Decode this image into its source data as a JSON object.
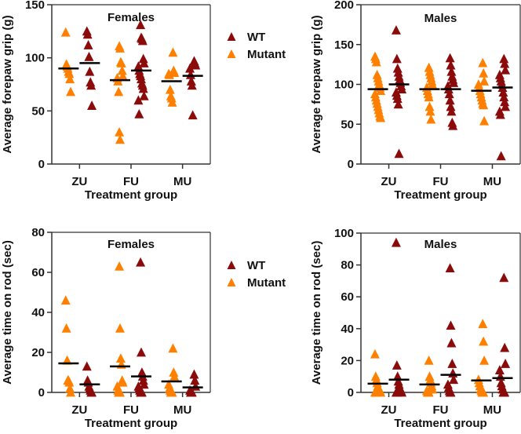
{
  "colors": {
    "wt": "#8b0a0a",
    "mutant": "#ff8000",
    "mean": "#000000",
    "axis": "#333333"
  },
  "legend": {
    "placement": "right",
    "entries": [
      {
        "label": "WT",
        "series": "WT"
      },
      {
        "label": "Mutant",
        "series": "Mutant"
      }
    ]
  },
  "chart_data": [
    {
      "type": "scatter",
      "title": "Females",
      "xlabel": "Treatment group",
      "ylabel": "Average forepaw grip (g)",
      "ylim": [
        0,
        150
      ],
      "yticks": [
        0,
        50,
        100,
        150
      ],
      "categories": [
        "ZU",
        "FU",
        "MU"
      ],
      "legend": "right",
      "series": [
        {
          "name": "Mutant",
          "groups": [
            {
              "category": "ZU",
              "values": [
                124,
                94,
                92,
                90,
                87,
                85,
                80,
                68
              ],
              "mean": 90
            },
            {
              "category": "FU",
              "values": [
                111,
                109,
                96,
                95,
                88,
                83,
                81,
                78,
                68,
                30,
                23
              ],
              "mean": 79
            },
            {
              "category": "MU",
              "values": [
                105,
                88,
                86,
                85,
                84,
                70,
                64,
                62,
                58
              ],
              "mean": 78
            }
          ]
        },
        {
          "name": "WT",
          "groups": [
            {
              "category": "ZU",
              "values": [
                125,
                122,
                112,
                101,
                87,
                77,
                74,
                55
              ],
              "mean": 95
            },
            {
              "category": "FU",
              "values": [
                131,
                119,
                118,
                116,
                99,
                95,
                92,
                88,
                85,
                83,
                80,
                76,
                74,
                71,
                64,
                60,
                47
              ],
              "mean": 88
            },
            {
              "category": "MU",
              "values": [
                97,
                95,
                93,
                90,
                84,
                78,
                74,
                46
              ],
              "mean": 83
            }
          ]
        }
      ]
    },
    {
      "type": "scatter",
      "title": "Males",
      "xlabel": "Treatment group",
      "ylabel": "Average forepaw grip (g)",
      "ylim": [
        0,
        200
      ],
      "yticks": [
        0,
        50,
        100,
        150,
        200
      ],
      "categories": [
        "ZU",
        "FU",
        "MU"
      ],
      "legend": "none",
      "series": [
        {
          "name": "Mutant",
          "groups": [
            {
              "category": "ZU",
              "values": [
                135,
                132,
                128,
                112,
                108,
                104,
                100,
                96,
                92,
                88,
                84,
                80,
                76,
                72,
                68,
                64,
                60,
                58
              ],
              "mean": 94
            },
            {
              "category": "FU",
              "values": [
                121,
                116,
                112,
                108,
                104,
                100,
                96,
                92,
                88,
                84,
                72,
                66,
                56
              ],
              "mean": 94
            },
            {
              "category": "MU",
              "values": [
                127,
                114,
                104,
                100,
                96,
                92,
                88,
                84,
                80,
                76,
                74,
                54
              ],
              "mean": 92
            }
          ]
        },
        {
          "name": "WT",
          "groups": [
            {
              "category": "ZU",
              "values": [
                168,
                132,
                120,
                115,
                110,
                106,
                102,
                98,
                94,
                90,
                86,
                82,
                75,
                13
              ],
              "mean": 100
            },
            {
              "category": "FU",
              "values": [
                133,
                124,
                116,
                110,
                106,
                102,
                98,
                94,
                88,
                80,
                72,
                66,
                52,
                48
              ],
              "mean": 94
            },
            {
              "category": "MU",
              "values": [
                132,
                126,
                118,
                112,
                108,
                104,
                100,
                96,
                90,
                84,
                78,
                72,
                66,
                62,
                10
              ],
              "mean": 96
            }
          ]
        }
      ]
    },
    {
      "type": "scatter",
      "title": "Females",
      "xlabel": "Treatment group",
      "ylabel": "Average time on rod (sec)",
      "ylim": [
        0,
        80
      ],
      "yticks": [
        0,
        20,
        40,
        60,
        80
      ],
      "categories": [
        "ZU",
        "FU",
        "MU"
      ],
      "legend": "right",
      "series": [
        {
          "name": "Mutant",
          "groups": [
            {
              "category": "ZU",
              "values": [
                46,
                32,
                16,
                6,
                6,
                5,
                2,
                0
              ],
              "mean": 14.5
            },
            {
              "category": "FU",
              "values": [
                63,
                32,
                17,
                14,
                6,
                5,
                3,
                1,
                0,
                0,
                0
              ],
              "mean": 13
            },
            {
              "category": "MU",
              "values": [
                22,
                10,
                8,
                4,
                2,
                1,
                0,
                0,
                0
              ],
              "mean": 5.5
            }
          ]
        },
        {
          "name": "WT",
          "groups": [
            {
              "category": "ZU",
              "values": [
                13,
                6,
                5,
                3,
                2,
                1,
                0,
                0
              ],
              "mean": 4
            },
            {
              "category": "FU",
              "values": [
                65,
                20,
                10,
                8,
                6,
                4,
                3,
                2,
                1,
                0,
                0,
                0
              ],
              "mean": 8
            },
            {
              "category": "MU",
              "values": [
                9,
                6,
                3,
                1,
                0,
                0,
                0
              ],
              "mean": 2.5
            }
          ]
        }
      ]
    },
    {
      "type": "scatter",
      "title": "Males",
      "xlabel": "Treatment group",
      "ylabel": "Average time on rod (sec)",
      "ylim": [
        0,
        100
      ],
      "yticks": [
        0,
        20,
        40,
        60,
        80,
        100
      ],
      "categories": [
        "ZU",
        "FU",
        "MU"
      ],
      "legend": "none",
      "series": [
        {
          "name": "Mutant",
          "groups": [
            {
              "category": "ZU",
              "values": [
                24,
                10,
                8,
                6,
                4,
                3,
                2,
                1,
                0,
                0,
                0,
                0
              ],
              "mean": 5.5
            },
            {
              "category": "FU",
              "values": [
                20,
                10,
                8,
                6,
                4,
                2,
                1,
                0,
                0,
                0
              ],
              "mean": 5
            },
            {
              "category": "MU",
              "values": [
                43,
                32,
                20,
                8,
                6,
                4,
                2,
                1,
                0,
                0,
                0
              ],
              "mean": 7.5
            }
          ]
        },
        {
          "name": "WT",
          "groups": [
            {
              "category": "ZU",
              "values": [
                94,
                17,
                10,
                7,
                5,
                3,
                2,
                1,
                0,
                0,
                0
              ],
              "mean": 8
            },
            {
              "category": "FU",
              "values": [
                78,
                42,
                31,
                18,
                12,
                8,
                5,
                3,
                1,
                0,
                0
              ],
              "mean": 11
            },
            {
              "category": "MU",
              "values": [
                72,
                28,
                18,
                14,
                10,
                6,
                4,
                2,
                0,
                0,
                0
              ],
              "mean": 9
            }
          ]
        }
      ]
    }
  ]
}
